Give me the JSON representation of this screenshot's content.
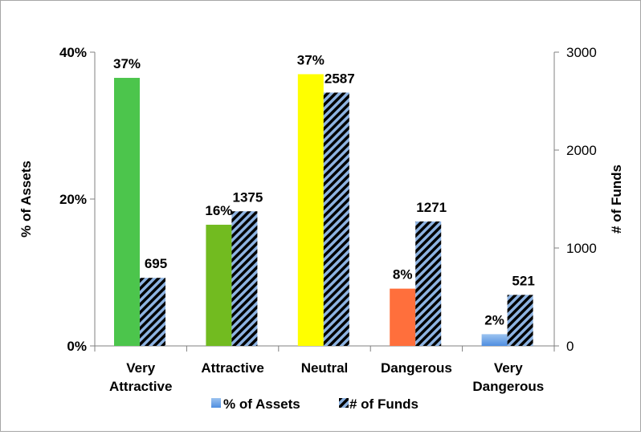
{
  "chart_data": {
    "type": "bar",
    "categories": [
      [
        "Very",
        "Attractive"
      ],
      [
        "Attractive"
      ],
      [
        "Neutral"
      ],
      [
        "Dangerous"
      ],
      [
        "Very",
        "Dangerous"
      ]
    ],
    "series": [
      {
        "name": "% of Assets",
        "axis": "left",
        "values": [
          36.5,
          16.5,
          37,
          7.8,
          1.6
        ],
        "data_labels": [
          "37%",
          "16%",
          "37%",
          "8%",
          "2%"
        ],
        "colors": [
          "#4cc54c",
          "#72bb20",
          "#ffff00",
          "#ff6f3c",
          "#4f8ee0"
        ]
      },
      {
        "name": "# of Funds",
        "axis": "right",
        "values": [
          695,
          1375,
          2587,
          1271,
          521
        ],
        "data_labels": [
          "695",
          "1375",
          "2587",
          "1271",
          "521"
        ],
        "pattern": "diagonal-stripes",
        "colors": [
          "#000000",
          "#8db3e2"
        ]
      }
    ],
    "y_left": {
      "label": "% of Assets",
      "ylim": [
        0,
        40
      ],
      "ticks": [
        0,
        20,
        40
      ],
      "tick_labels": [
        "0%",
        "20%",
        "40%"
      ]
    },
    "y_right": {
      "label": "# of Funds",
      "ylim": [
        0,
        3000
      ],
      "ticks": [
        0,
        1000,
        2000,
        3000
      ],
      "tick_labels": [
        "0",
        "1000",
        "2000",
        "3000"
      ]
    },
    "grid": false,
    "legend": {
      "position": "bottom",
      "entries": [
        "% of Assets",
        "# of Funds"
      ]
    }
  }
}
